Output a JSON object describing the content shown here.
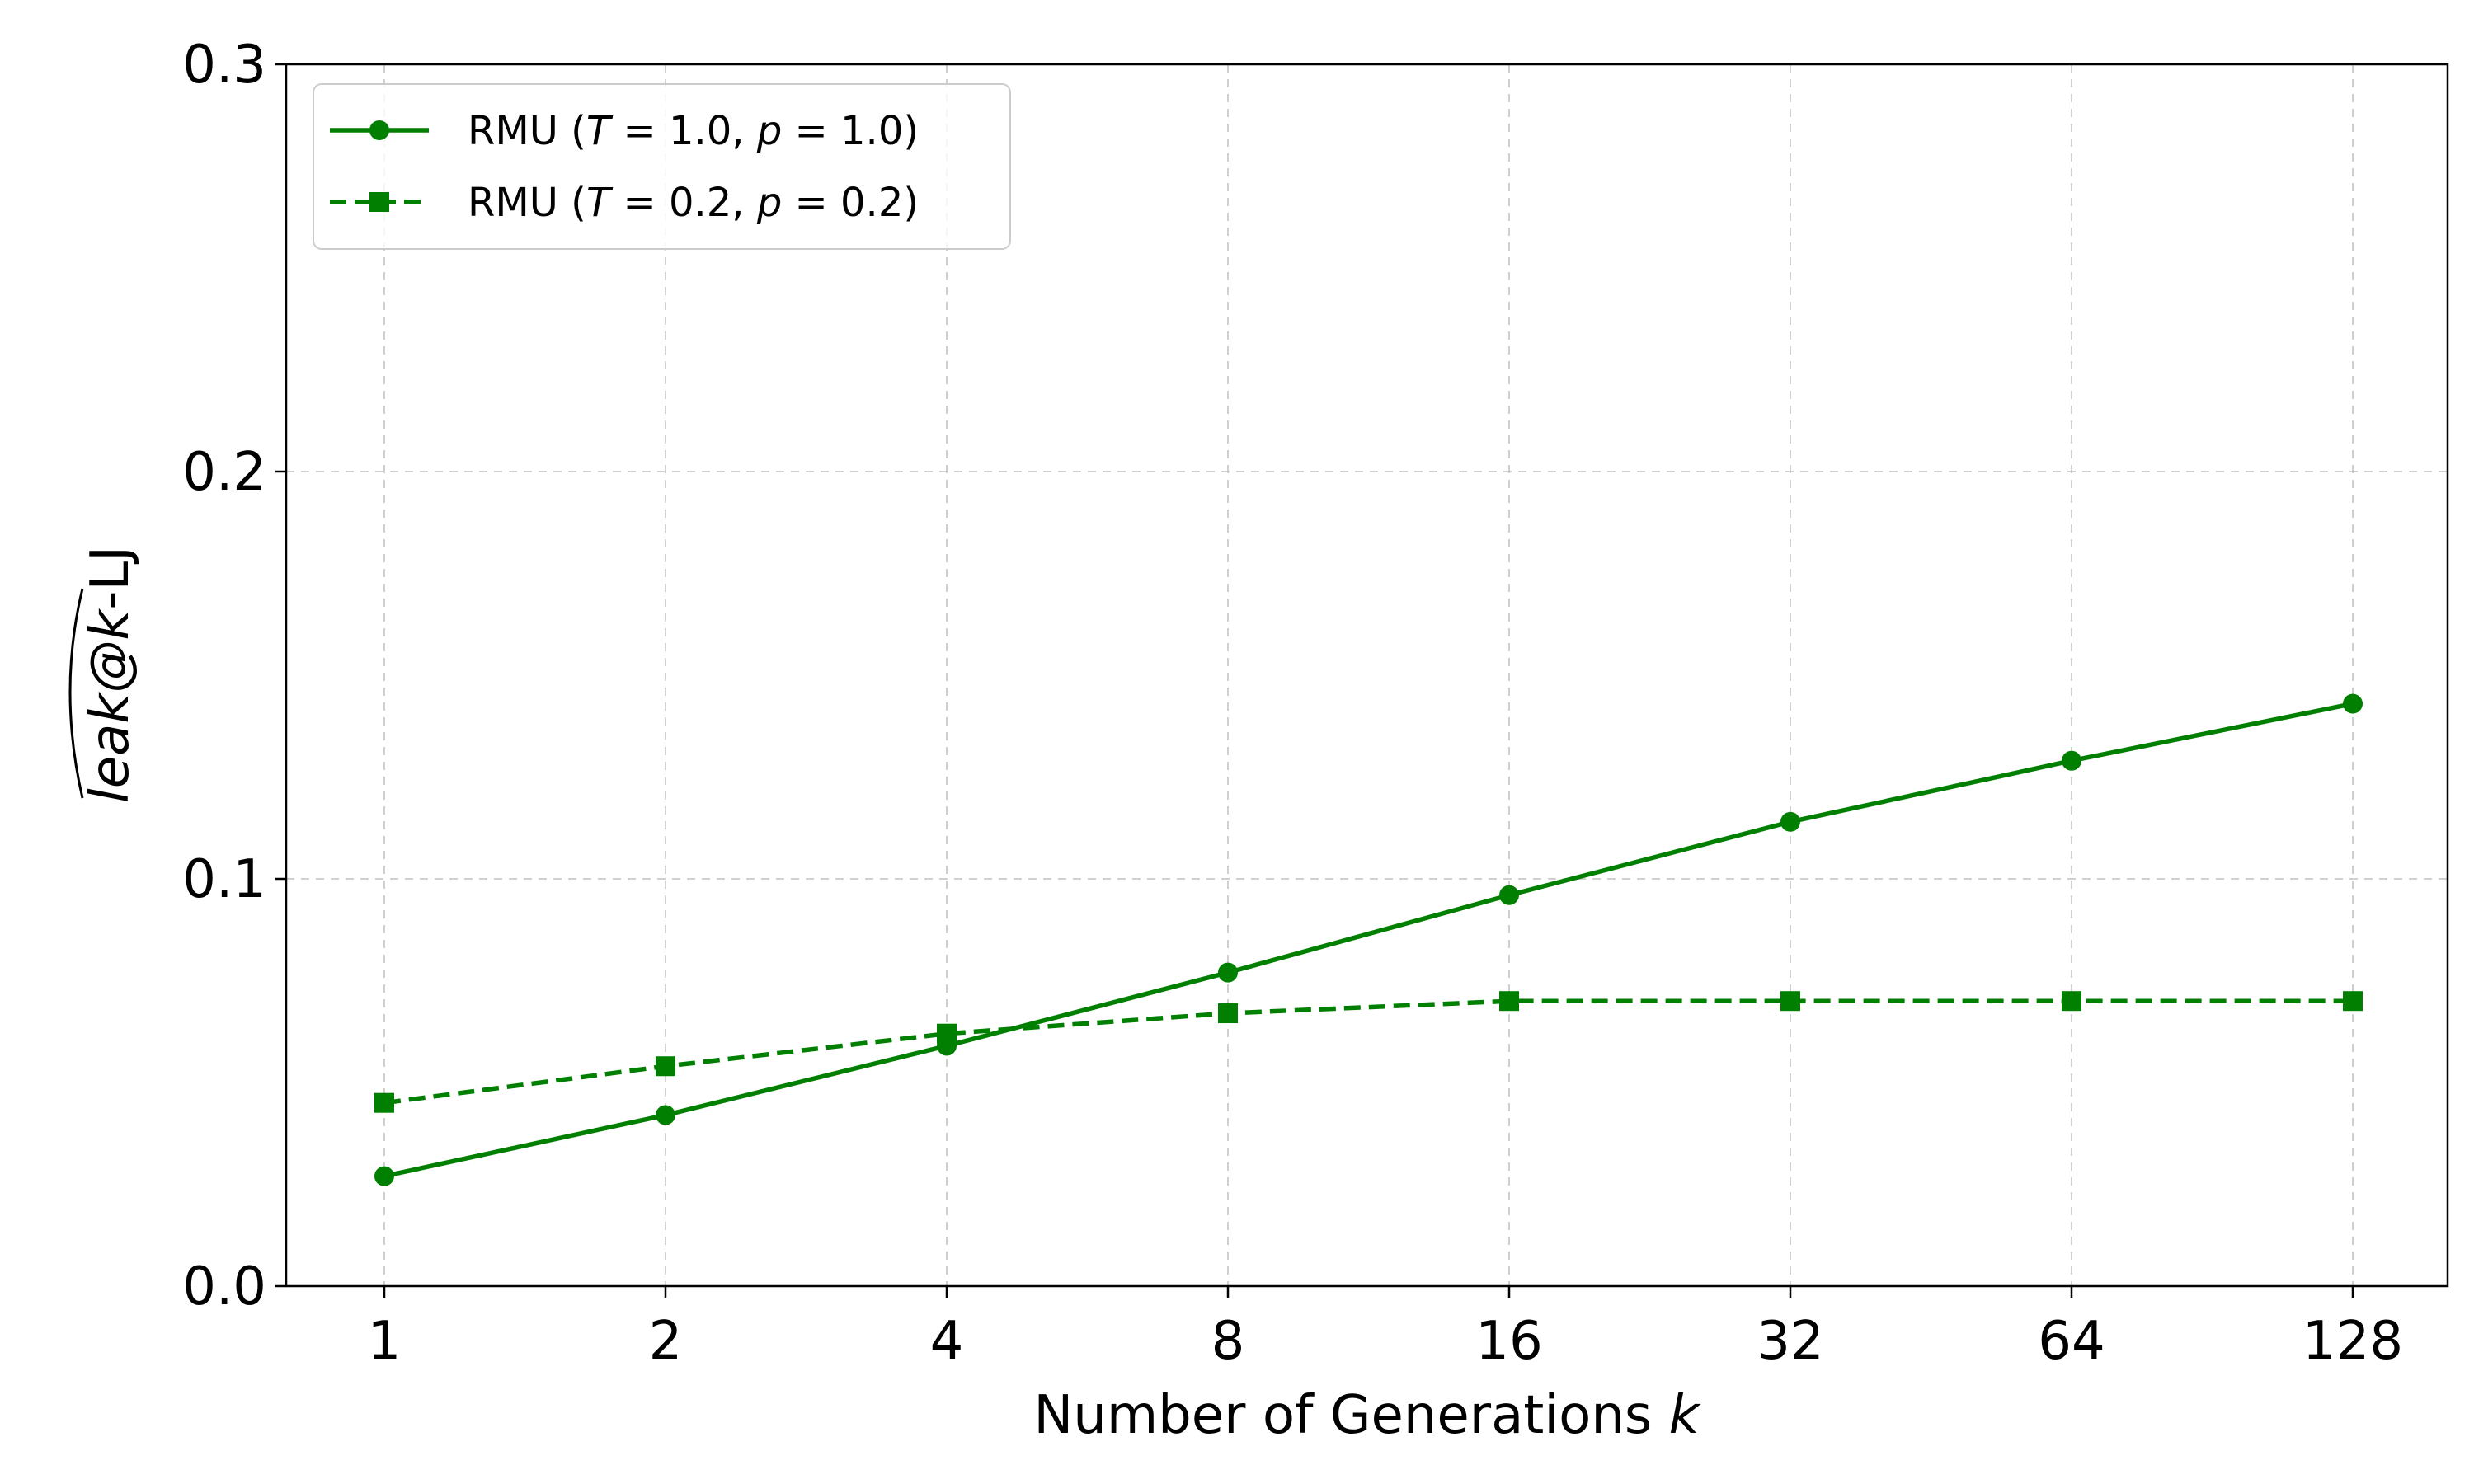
{
  "chart_data": {
    "type": "line",
    "x_scale": "log2",
    "x": [
      1,
      2,
      4,
      8,
      16,
      32,
      64,
      128
    ],
    "x_tick_labels": [
      "1",
      "2",
      "4",
      "8",
      "16",
      "32",
      "64",
      "128"
    ],
    "y_tick_labels": [
      "0.0",
      "0.1",
      "0.2",
      "0.3"
    ],
    "y_ticks": [
      0.0,
      0.1,
      0.2,
      0.3
    ],
    "ylim": [
      0.0,
      0.3
    ],
    "xlabel_main": "Number of Generations ",
    "xlabel_var": "k",
    "ylabel_main": "leak@",
    "ylabel_var": "k",
    "ylabel_suffix": "-LJ",
    "grid": true,
    "legend_position": "upper-left",
    "series": [
      {
        "name": "RMU (T = 1.0, p = 1.0)",
        "values": [
          0.027,
          0.042,
          0.059,
          0.077,
          0.096,
          0.114,
          0.129,
          0.143
        ],
        "color": "#007f00",
        "linestyle": "solid",
        "marker": "circle"
      },
      {
        "name": "RMU (T = 0.2, p = 0.2)",
        "values": [
          0.045,
          0.054,
          0.062,
          0.067,
          0.07,
          0.07,
          0.07,
          0.07
        ],
        "color": "#007f00",
        "linestyle": "dashed",
        "marker": "square"
      }
    ]
  }
}
